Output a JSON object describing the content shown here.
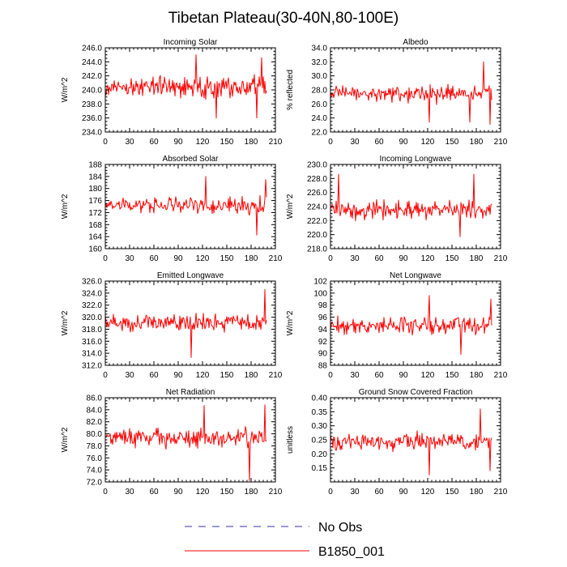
{
  "figure_title": "Tibetan Plateau(30-40N,80-100E)",
  "colors": {
    "model": "#ff0000",
    "obs": "#3333aa",
    "axis": "#000000",
    "background": "#ffffff"
  },
  "legend": [
    {
      "label": "No Obs",
      "style": "dashed",
      "color": "#3333aa"
    },
    {
      "label": "B1850_001",
      "style": "solid",
      "color": "#ff0000"
    }
  ],
  "chart_data": [
    {
      "type": "line",
      "title": "Incoming Solar",
      "ylabel": "W/m^2",
      "xlim": [
        0,
        210
      ],
      "xticks": [
        0,
        30,
        60,
        90,
        120,
        150,
        180,
        210
      ],
      "ylim": [
        234,
        246
      ],
      "yticks": [
        "234.0",
        "236.0",
        "238.0",
        "240.0",
        "242.0",
        "244.0",
        "246.0"
      ],
      "series": [
        {
          "name": "B1850_001",
          "base": 240.5,
          "amp": 2.2,
          "spikes": [
            [
              112,
              245.0
            ],
            [
              137,
              236.0
            ],
            [
              187,
              236.0
            ],
            [
              193,
              244.6
            ]
          ]
        }
      ]
    },
    {
      "type": "line",
      "title": "Albedo",
      "ylabel": "% reflected",
      "xlim": [
        0,
        210
      ],
      "xticks": [
        0,
        30,
        60,
        90,
        120,
        150,
        180,
        210
      ],
      "ylim": [
        22,
        34
      ],
      "yticks": [
        "22.0",
        "24.0",
        "26.0",
        "28.0",
        "30.0",
        "32.0",
        "34.0"
      ],
      "series": [
        {
          "name": "B1850_001",
          "base": 27.4,
          "amp": 1.7,
          "spikes": [
            [
              122,
              23.4
            ],
            [
              172,
              23.4
            ],
            [
              189,
              32.0
            ],
            [
              197,
              23.1
            ]
          ]
        }
      ]
    },
    {
      "type": "line",
      "title": "Absorbed Solar",
      "ylabel": "W/m^2",
      "xlim": [
        0,
        210
      ],
      "xticks": [
        0,
        30,
        60,
        90,
        120,
        150,
        180,
        210
      ],
      "ylim": [
        160,
        188
      ],
      "yticks": [
        "160",
        "164",
        "168",
        "172",
        "176",
        "180",
        "184",
        "188"
      ],
      "series": [
        {
          "name": "B1850_001",
          "base": 174.5,
          "amp": 4.0,
          "spikes": [
            [
              124,
              184.0
            ],
            [
              187,
              164.5
            ],
            [
              198,
              183.0
            ]
          ]
        }
      ]
    },
    {
      "type": "line",
      "title": "Incoming Longwave",
      "ylabel": "W/m^2",
      "xlim": [
        0,
        210
      ],
      "xticks": [
        0,
        30,
        60,
        90,
        120,
        150,
        180,
        210
      ],
      "ylim": [
        218,
        230
      ],
      "yticks": [
        "218.0",
        "220.0",
        "222.0",
        "224.0",
        "226.0",
        "228.0",
        "230.0"
      ],
      "series": [
        {
          "name": "B1850_001",
          "base": 223.6,
          "amp": 1.8,
          "spikes": [
            [
              10,
              228.6
            ],
            [
              160,
              219.7
            ],
            [
              177,
              228.6
            ]
          ]
        }
      ]
    },
    {
      "type": "line",
      "title": "Emitted Longwave",
      "ylabel": "W/m^2",
      "xlim": [
        0,
        210
      ],
      "xticks": [
        0,
        30,
        60,
        90,
        120,
        150,
        180,
        210
      ],
      "ylim": [
        312,
        326
      ],
      "yticks": [
        "312.0",
        "314.0",
        "316.0",
        "318.0",
        "320.0",
        "322.0",
        "324.0",
        "326.0"
      ],
      "series": [
        {
          "name": "B1850_001",
          "base": 319.0,
          "amp": 2.0,
          "spikes": [
            [
              106,
              313.3
            ],
            [
              197,
              324.6
            ]
          ]
        }
      ]
    },
    {
      "type": "line",
      "title": "Net Longwave",
      "ylabel": "W/m^2",
      "xlim": [
        0,
        210
      ],
      "xticks": [
        0,
        30,
        60,
        90,
        120,
        150,
        180,
        210
      ],
      "ylim": [
        88,
        102
      ],
      "yticks": [
        "88",
        "90",
        "92",
        "94",
        "96",
        "98",
        "100",
        "102"
      ],
      "series": [
        {
          "name": "B1850_001",
          "base": 94.6,
          "amp": 2.2,
          "spikes": [
            [
              122,
              99.6
            ],
            [
              161,
              89.8
            ],
            [
              198,
              99.0
            ]
          ]
        }
      ]
    },
    {
      "type": "line",
      "title": "Net Radiation",
      "ylabel": "W/m^2",
      "xlim": [
        0,
        210
      ],
      "xticks": [
        0,
        30,
        60,
        90,
        120,
        150,
        180,
        210
      ],
      "ylim": [
        72,
        86
      ],
      "yticks": [
        "72.0",
        "74.0",
        "76.0",
        "78.0",
        "80.0",
        "82.0",
        "84.0",
        "86.0"
      ],
      "series": [
        {
          "name": "B1850_001",
          "base": 79.3,
          "amp": 2.3,
          "spikes": [
            [
              122,
              84.7
            ],
            [
              178,
              72.2
            ],
            [
              197,
              84.8
            ]
          ]
        }
      ]
    },
    {
      "type": "line",
      "title": "Ground Snow Covered Fraction",
      "ylabel": "unitless",
      "xlim": [
        0,
        210
      ],
      "xticks": [
        0,
        30,
        60,
        90,
        120,
        150,
        180,
        210
      ],
      "ylim": [
        0.1,
        0.4
      ],
      "yticks": [
        "",
        "0.15",
        "0.20",
        "0.25",
        "0.30",
        "0.35",
        "0.40"
      ],
      "series": [
        {
          "name": "B1850_001",
          "base": 0.245,
          "amp": 0.045,
          "spikes": [
            [
              122,
              0.125
            ],
            [
              185,
              0.36
            ],
            [
              197,
              0.14
            ]
          ]
        }
      ]
    }
  ]
}
